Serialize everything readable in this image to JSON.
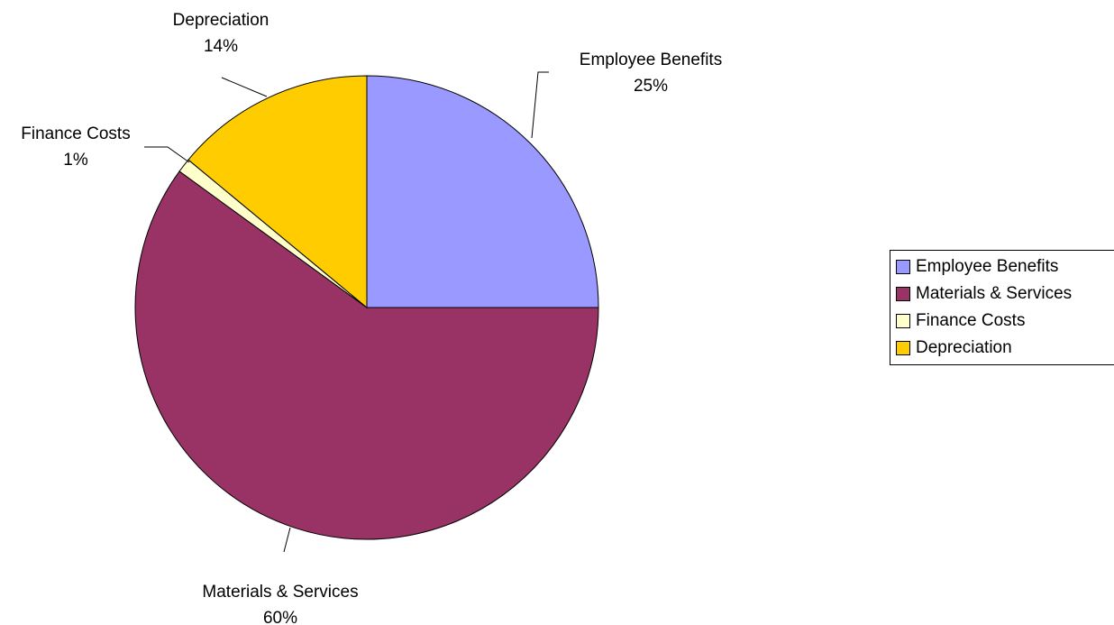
{
  "chart_data": {
    "type": "pie",
    "title": "",
    "slices": [
      {
        "name": "Employee Benefits",
        "value": 25,
        "label": "25%",
        "color": "#9999FF"
      },
      {
        "name": "Materials & Services",
        "value": 60,
        "label": "60%",
        "color": "#993366"
      },
      {
        "name": "Finance Costs",
        "value": 1,
        "label": "1%",
        "color": "#FFFFCC"
      },
      {
        "name": "Depreciation",
        "value": 14,
        "label": "14%",
        "color": "#FFCC00"
      }
    ],
    "legend_position": "right"
  }
}
